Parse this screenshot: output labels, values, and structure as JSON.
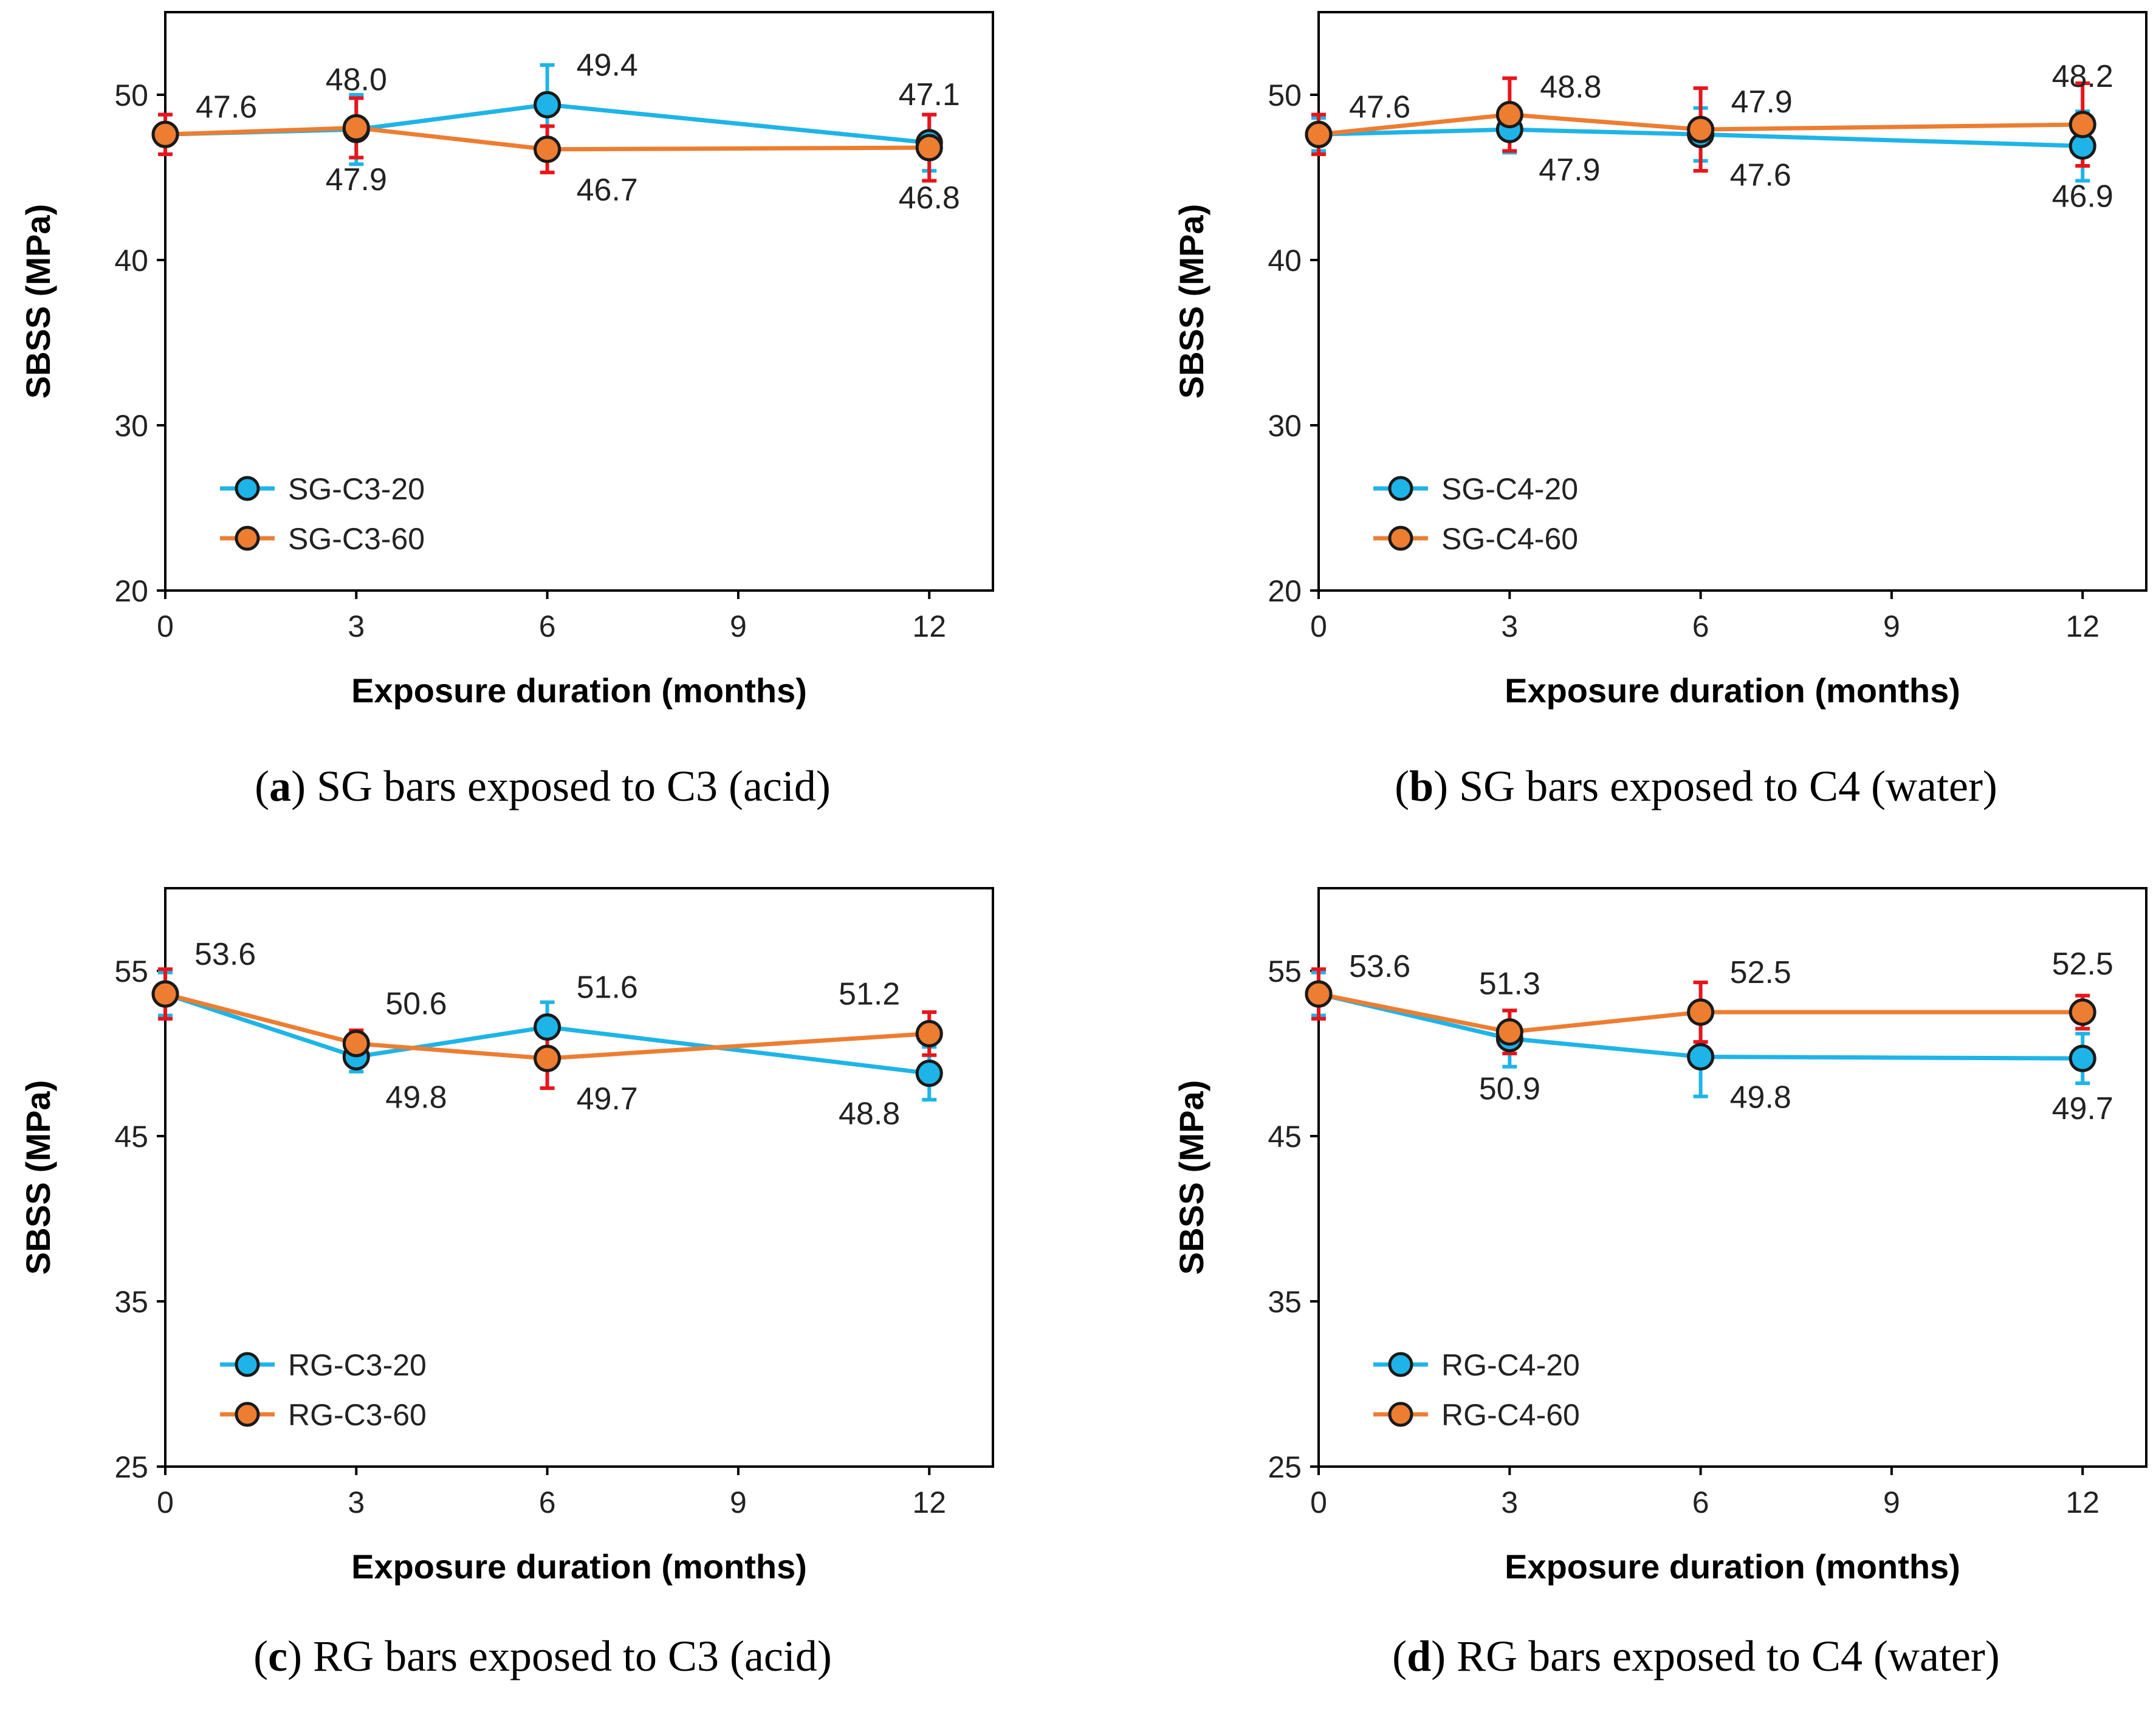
{
  "chart_data": [
    {
      "type": "line",
      "panel": "a",
      "caption_letter": "a",
      "caption_text": "SG bars exposed to C3 (acid)",
      "xlabel": "Exposure duration (months)",
      "ylabel": "SBSS (MPa)",
      "xlim": [
        0,
        13
      ],
      "ylim": [
        20,
        55
      ],
      "xticks": [
        0,
        3,
        6,
        9,
        12
      ],
      "yticks": [
        20,
        30,
        40,
        50
      ],
      "legend_position": "lower-left",
      "series": [
        {
          "name": "SG-C3-20",
          "color": "#1EB4E8",
          "marker_fill": "#1EB4E8",
          "err_color": "#1EB4E8",
          "x": [
            0,
            3,
            6,
            12
          ],
          "values": [
            47.6,
            47.9,
            49.4,
            47.1
          ],
          "errors": [
            1.2,
            2.1,
            2.4,
            1.7
          ],
          "labels": [
            "47.6",
            "47.9",
            "49.4",
            "47.1"
          ],
          "label_pos": [
            "right",
            "below",
            "above-right",
            "above"
          ]
        },
        {
          "name": "SG-C3-60",
          "color": "#ED7D31",
          "marker_fill": "#ED7D31",
          "err_color": "#E8151B",
          "x": [
            0,
            3,
            6,
            12
          ],
          "values": [
            47.6,
            48.0,
            46.7,
            46.8
          ],
          "errors": [
            1.2,
            1.8,
            1.4,
            2.0
          ],
          "labels": [
            "",
            "48.0",
            "46.7",
            "46.8"
          ],
          "label_pos": [
            "",
            "above",
            "below-right",
            "below"
          ]
        }
      ]
    },
    {
      "type": "line",
      "panel": "b",
      "caption_letter": "b",
      "caption_text": "SG bars exposed to C4 (water)",
      "xlabel": "Exposure duration (months)",
      "ylabel": "SBSS (MPa)",
      "xlim": [
        0,
        13
      ],
      "ylim": [
        20,
        55
      ],
      "xticks": [
        0,
        3,
        6,
        9,
        12
      ],
      "yticks": [
        20,
        30,
        40,
        50
      ],
      "legend_position": "lower-left",
      "series": [
        {
          "name": "SG-C4-20",
          "color": "#1EB4E8",
          "marker_fill": "#1EB4E8",
          "err_color": "#1EB4E8",
          "x": [
            0,
            3,
            6,
            12
          ],
          "values": [
            47.6,
            47.9,
            47.6,
            46.9
          ],
          "errors": [
            1.0,
            1.4,
            1.6,
            2.1
          ],
          "labels": [
            "",
            "47.9",
            "47.6",
            "46.9"
          ],
          "label_pos": [
            "",
            "below-right",
            "below-right",
            "below"
          ]
        },
        {
          "name": "SG-C4-60",
          "color": "#ED7D31",
          "marker_fill": "#ED7D31",
          "err_color": "#E8151B",
          "x": [
            0,
            3,
            6,
            12
          ],
          "values": [
            47.6,
            48.8,
            47.9,
            48.2
          ],
          "errors": [
            1.2,
            2.2,
            2.5,
            2.5
          ],
          "labels": [
            "47.6",
            "48.8",
            "47.9",
            "48.2"
          ],
          "label_pos": [
            "right",
            "right",
            "right",
            "above"
          ]
        }
      ]
    },
    {
      "type": "line",
      "panel": "c",
      "caption_letter": "c",
      "caption_text": "RG bars exposed to C3 (acid)",
      "xlabel": "Exposure duration (months)",
      "ylabel": "SBSS (MPa)",
      "xlim": [
        0,
        13
      ],
      "ylim": [
        25,
        60
      ],
      "xticks": [
        0,
        3,
        6,
        9,
        12
      ],
      "yticks": [
        25,
        35,
        45,
        55
      ],
      "legend_position": "lower-left",
      "series": [
        {
          "name": "RG-C3-20",
          "color": "#1EB4E8",
          "marker_fill": "#1EB4E8",
          "err_color": "#1EB4E8",
          "x": [
            0,
            3,
            6,
            12
          ],
          "values": [
            53.6,
            49.8,
            51.6,
            48.8
          ],
          "errors": [
            1.3,
            0.9,
            1.5,
            1.6
          ],
          "labels": [
            "53.6",
            "49.8",
            "51.6",
            "48.8"
          ],
          "label_pos": [
            "above-right",
            "below-right",
            "above-right",
            "below-left"
          ]
        },
        {
          "name": "RG-C3-60",
          "color": "#ED7D31",
          "marker_fill": "#ED7D31",
          "err_color": "#E8151B",
          "x": [
            0,
            3,
            6,
            12
          ],
          "values": [
            53.6,
            50.6,
            49.7,
            51.2
          ],
          "errors": [
            1.5,
            0.8,
            1.8,
            1.3
          ],
          "labels": [
            "",
            "50.6",
            "49.7",
            "51.2"
          ],
          "label_pos": [
            "",
            "above-right",
            "below-right",
            "above-left"
          ]
        }
      ]
    },
    {
      "type": "line",
      "panel": "d",
      "caption_letter": "d",
      "caption_text": "RG bars exposed to C4 (water)",
      "xlabel": "Exposure duration (months)",
      "ylabel": "SBSS (MPa)",
      "xlim": [
        0,
        13
      ],
      "ylim": [
        25,
        60
      ],
      "xticks": [
        0,
        3,
        6,
        9,
        12
      ],
      "yticks": [
        25,
        35,
        45,
        55
      ],
      "legend_position": "lower-left",
      "series": [
        {
          "name": "RG-C4-20",
          "color": "#1EB4E8",
          "marker_fill": "#1EB4E8",
          "err_color": "#1EB4E8",
          "x": [
            0,
            3,
            6,
            12
          ],
          "values": [
            53.6,
            50.9,
            49.8,
            49.7
          ],
          "errors": [
            1.3,
            1.7,
            2.4,
            1.5
          ],
          "labels": [
            "",
            "50.9",
            "49.8",
            "49.7"
          ],
          "label_pos": [
            "",
            "below",
            "below-right",
            "below"
          ]
        },
        {
          "name": "RG-C4-60",
          "color": "#ED7D31",
          "marker_fill": "#ED7D31",
          "err_color": "#E8151B",
          "x": [
            0,
            3,
            6,
            12
          ],
          "values": [
            53.6,
            51.3,
            52.5,
            52.5
          ],
          "errors": [
            1.5,
            1.3,
            1.8,
            1.0
          ],
          "labels": [
            "53.6",
            "51.3",
            "52.5",
            "52.5"
          ],
          "label_pos": [
            "right",
            "above",
            "above-right",
            "above"
          ]
        }
      ]
    }
  ]
}
